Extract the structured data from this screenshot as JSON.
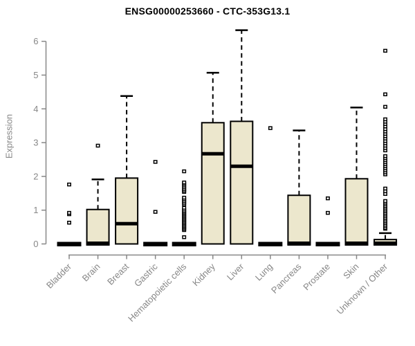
{
  "chart_data": {
    "type": "boxplot",
    "title": "ENSG00000253660 - CTC-353G13.1",
    "ylabel": "Expression",
    "ylim": [
      0,
      6.4
    ],
    "yticks": [
      0,
      1,
      2,
      3,
      4,
      5,
      6
    ],
    "x_label_rotation": 45,
    "grid": false,
    "legend": "none",
    "categories": [
      "Bladder",
      "Brain",
      "Breast",
      "Gastric",
      "Hematopoietic cells",
      "Kidney",
      "Liver",
      "Lung",
      "Pancreas",
      "Prostate",
      "Skin",
      "Unknown / Other"
    ],
    "boxes": [
      {
        "category": "Bladder",
        "q1": 0,
        "median": 0,
        "q3": 0,
        "whisker_low": 0,
        "whisker_high": 0,
        "outliers": [
          0.63,
          0.88,
          0.92,
          1.76
        ]
      },
      {
        "category": "Brain",
        "q1": 0,
        "median": 0,
        "q3": 1.02,
        "whisker_low": 0,
        "whisker_high": 1.91,
        "outliers": [
          2.91
        ]
      },
      {
        "category": "Breast",
        "q1": 0,
        "median": 0.6,
        "q3": 1.95,
        "whisker_low": 0,
        "whisker_high": 4.38,
        "outliers": []
      },
      {
        "category": "Gastric",
        "q1": 0,
        "median": 0,
        "q3": 0,
        "whisker_low": 0,
        "whisker_high": 0,
        "outliers": [
          0.95,
          2.43
        ]
      },
      {
        "category": "Hematopoietic cells",
        "q1": 0,
        "median": 0,
        "q3": 0,
        "whisker_low": 0,
        "whisker_high": 0,
        "outliers": [
          0.2,
          0.41,
          0.45,
          0.49,
          0.53,
          0.57,
          0.61,
          0.65,
          0.69,
          0.73,
          0.77,
          0.81,
          0.85,
          0.89,
          0.93,
          0.97,
          1.02,
          1.07,
          1.17,
          1.22,
          1.27,
          1.32,
          1.37,
          1.54,
          1.58,
          1.63,
          1.68,
          1.73,
          1.78,
          1.82,
          2.15
        ]
      },
      {
        "category": "Kidney",
        "q1": 0,
        "median": 2.67,
        "q3": 3.59,
        "whisker_low": 0,
        "whisker_high": 5.07,
        "outliers": []
      },
      {
        "category": "Liver",
        "q1": 0,
        "median": 2.3,
        "q3": 3.63,
        "whisker_low": 0,
        "whisker_high": 6.33,
        "outliers": []
      },
      {
        "category": "Lung",
        "q1": 0,
        "median": 0,
        "q3": 0,
        "whisker_low": 0,
        "whisker_high": 0,
        "outliers": [
          3.43
        ]
      },
      {
        "category": "Pancreas",
        "q1": 0,
        "median": 0,
        "q3": 1.44,
        "whisker_low": 0,
        "whisker_high": 3.36,
        "outliers": []
      },
      {
        "category": "Prostate",
        "q1": 0,
        "median": 0,
        "q3": 0,
        "whisker_low": 0,
        "whisker_high": 0,
        "outliers": [
          0.92,
          1.35
        ]
      },
      {
        "category": "Skin",
        "q1": 0,
        "median": 0,
        "q3": 1.93,
        "whisker_low": 0,
        "whisker_high": 4.04,
        "outliers": []
      },
      {
        "category": "Unknown / Other",
        "q1": 0,
        "median": 0,
        "q3": 0.13,
        "whisker_low": 0,
        "whisker_high": 0.32,
        "outliers": [
          0.45,
          0.47,
          0.52,
          0.57,
          0.62,
          0.67,
          0.72,
          0.77,
          0.82,
          0.87,
          0.92,
          0.97,
          1.02,
          1.07,
          1.12,
          1.17,
          1.22,
          1.27,
          1.48,
          1.56,
          1.64,
          2.06,
          2.12,
          2.18,
          2.24,
          2.3,
          2.36,
          2.42,
          2.48,
          2.54,
          2.6,
          2.77,
          2.84,
          2.91,
          2.98,
          3.05,
          3.12,
          3.19,
          3.26,
          3.33,
          3.4,
          3.48,
          3.55,
          3.62,
          3.69,
          4.06,
          4.43,
          5.72
        ]
      }
    ],
    "colors": {
      "box_fill": "#ece7cd",
      "box_stroke": "#000000",
      "median": "#000000",
      "whisker": "#000000",
      "outlier_stroke": "#000000",
      "outlier_fill": "#ffffff",
      "axis": "#878787",
      "tick_label": "#878787",
      "title": "#000000",
      "background": "#ffffff"
    }
  }
}
